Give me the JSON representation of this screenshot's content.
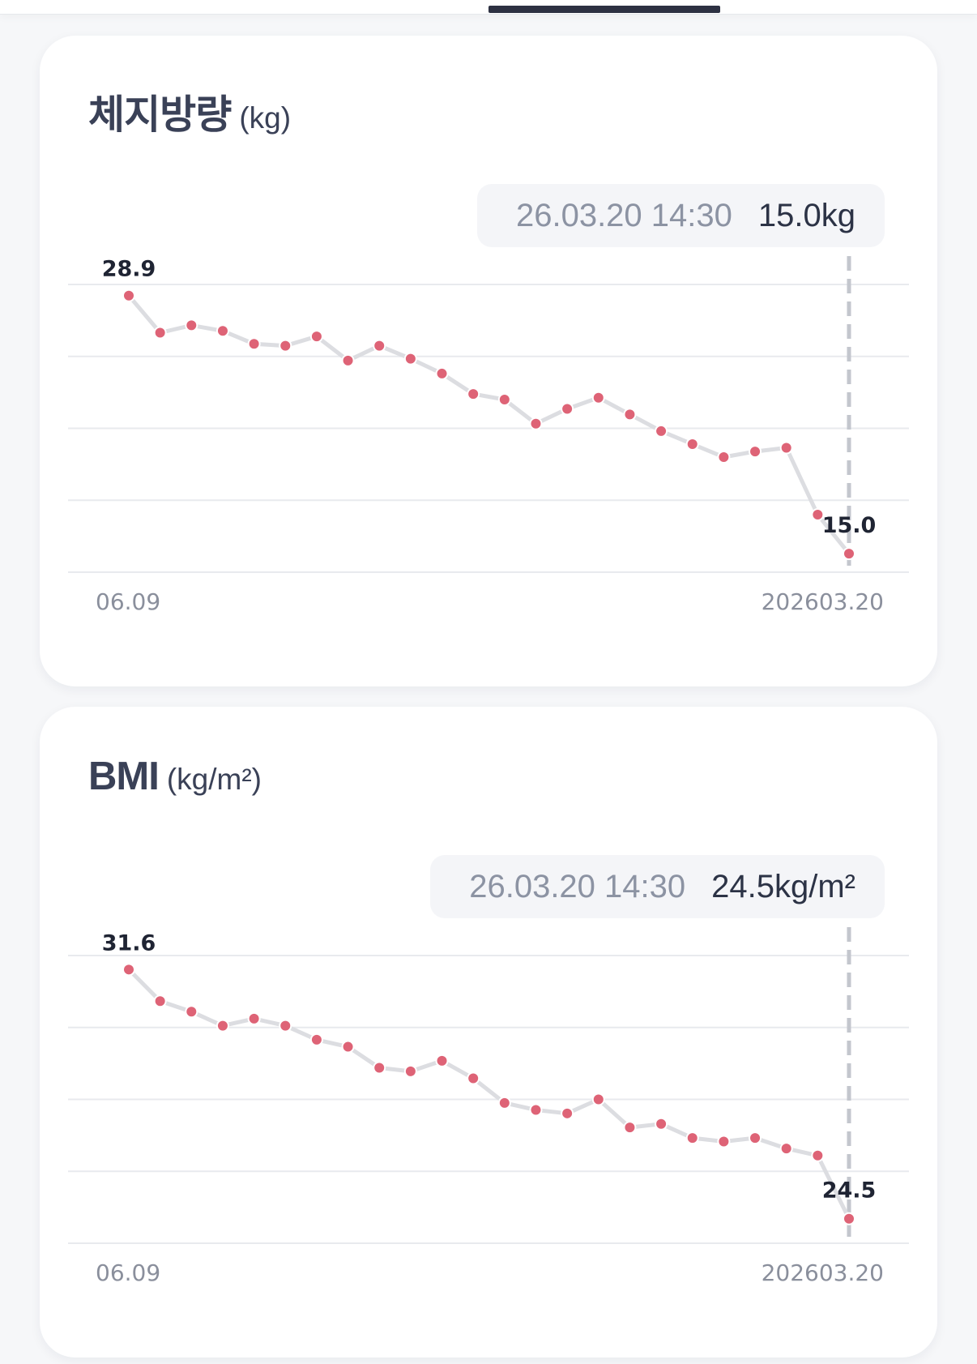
{
  "header": {
    "active_tab": ""
  },
  "charts_meta": {
    "point_color": "#de6376",
    "line_color": "#dcdde1",
    "grid_color": "#e8eaee"
  },
  "chart_data": [
    {
      "type": "line",
      "title": "체지방량",
      "unit_label": "(kg)",
      "tooltip": {
        "date": "26.03.20 14:30",
        "value": "15.0kg"
      },
      "xlabel_start": "06.09",
      "xlabel_end": "202603.20",
      "max_label": "28.9",
      "last_label": "15.0",
      "last_point_color": "#5aa88a",
      "ylim": [
        14,
        29.5
      ],
      "values": [
        28.9,
        26.9,
        27.3,
        27.0,
        26.3,
        26.2,
        26.7,
        25.4,
        26.2,
        25.5,
        24.7,
        23.6,
        23.3,
        22.0,
        22.8,
        23.4,
        22.5,
        21.6,
        20.9,
        20.2,
        20.5,
        20.7,
        17.1,
        15.0
      ]
    },
    {
      "type": "line",
      "title": "BMI",
      "unit_label": "(kg/m²)",
      "tooltip": {
        "date": "26.03.20 14:30",
        "value": "24.5kg/m²"
      },
      "xlabel_start": "06.09",
      "xlabel_end": "202603.20",
      "max_label": "31.6",
      "last_label": "24.5",
      "last_point_color": "#6b7182",
      "ylim": [
        23.8,
        32.0
      ],
      "values": [
        31.6,
        30.7,
        30.4,
        30.0,
        30.2,
        30.0,
        29.6,
        29.4,
        28.8,
        28.7,
        29.0,
        28.5,
        27.8,
        27.6,
        27.5,
        27.9,
        27.1,
        27.2,
        26.8,
        26.7,
        26.8,
        26.5,
        26.3,
        24.5
      ]
    }
  ]
}
